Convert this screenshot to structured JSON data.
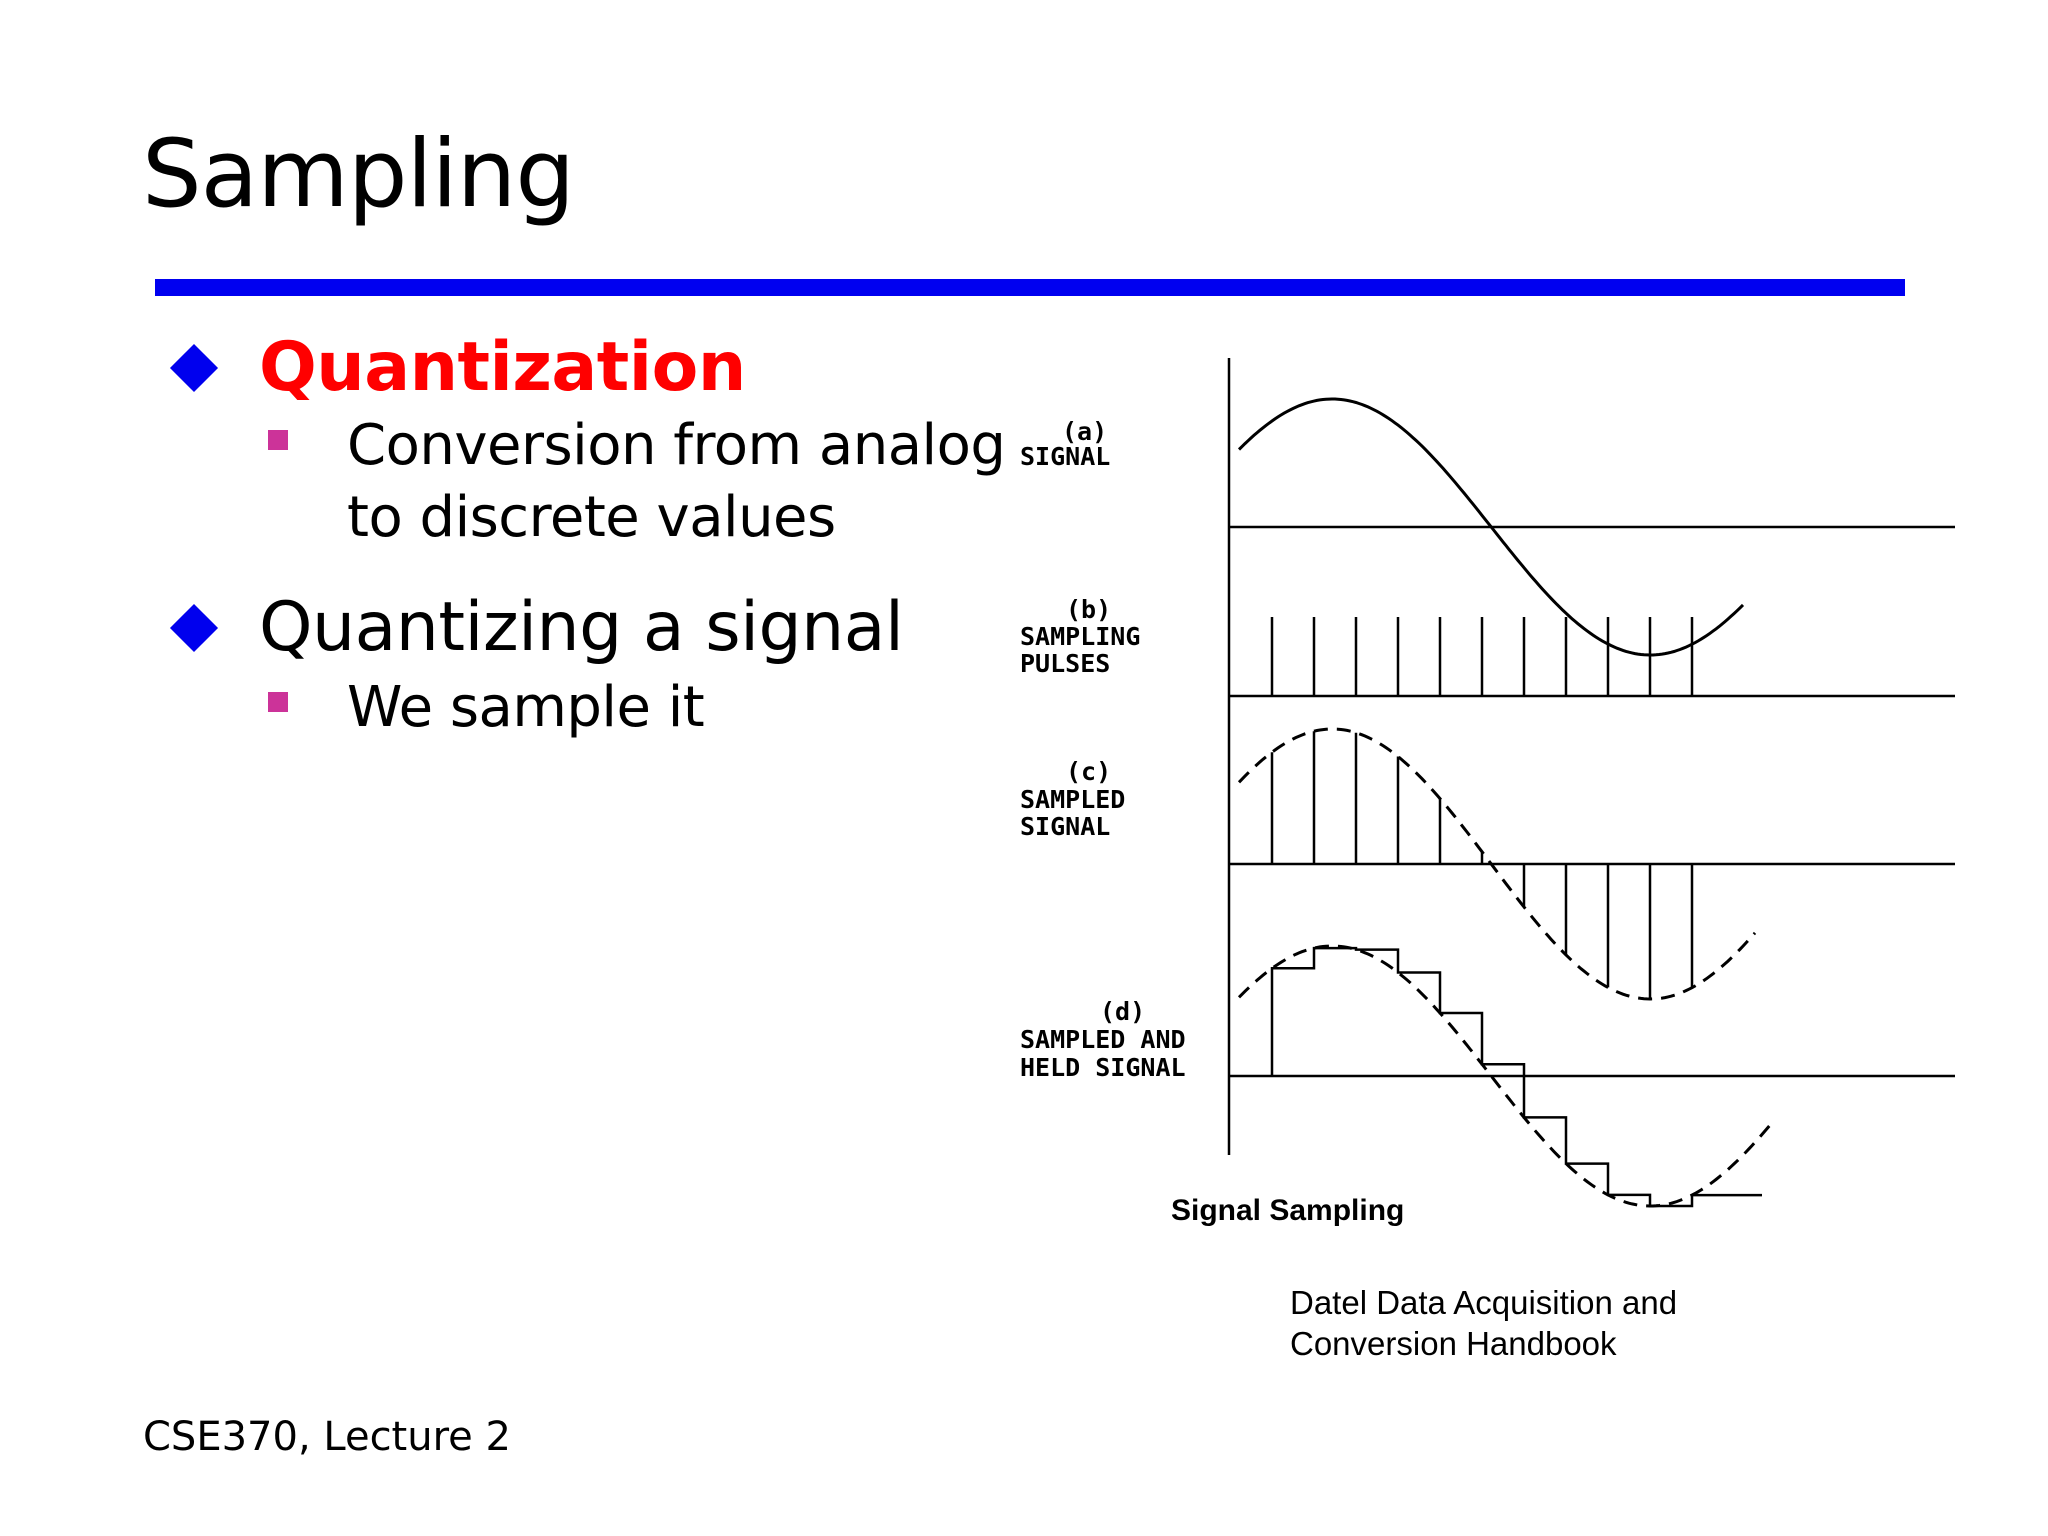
{
  "slide": {
    "title": "Sampling",
    "footer": "CSE370, Lecture 2"
  },
  "bullets": [
    {
      "text": "Quantization",
      "emphasis": true,
      "sub": [
        "Conversion from analog",
        "to discrete values"
      ]
    },
    {
      "text": "Quantizing a signal",
      "emphasis": false,
      "sub": [
        "We sample it"
      ]
    }
  ],
  "figure": {
    "panels": [
      {
        "letter": "(a)",
        "lines": [
          "SIGNAL"
        ]
      },
      {
        "letter": "(b)",
        "lines": [
          "SAMPLING",
          "PULSES"
        ]
      },
      {
        "letter": "(c)",
        "lines": [
          "SAMPLED",
          "SIGNAL"
        ]
      },
      {
        "letter": "(d)",
        "lines": [
          "SAMPLED AND",
          "HELD SIGNAL"
        ]
      }
    ],
    "caption": "Signal Sampling",
    "source": "Datel Data Acquisition and\nConversion Handbook"
  },
  "colors": {
    "title_rule": "#0000f0",
    "bullet_diamond": "#0000ee",
    "sub_bullet_square": "#cc3399",
    "emphasis_text": "#ff0000"
  }
}
